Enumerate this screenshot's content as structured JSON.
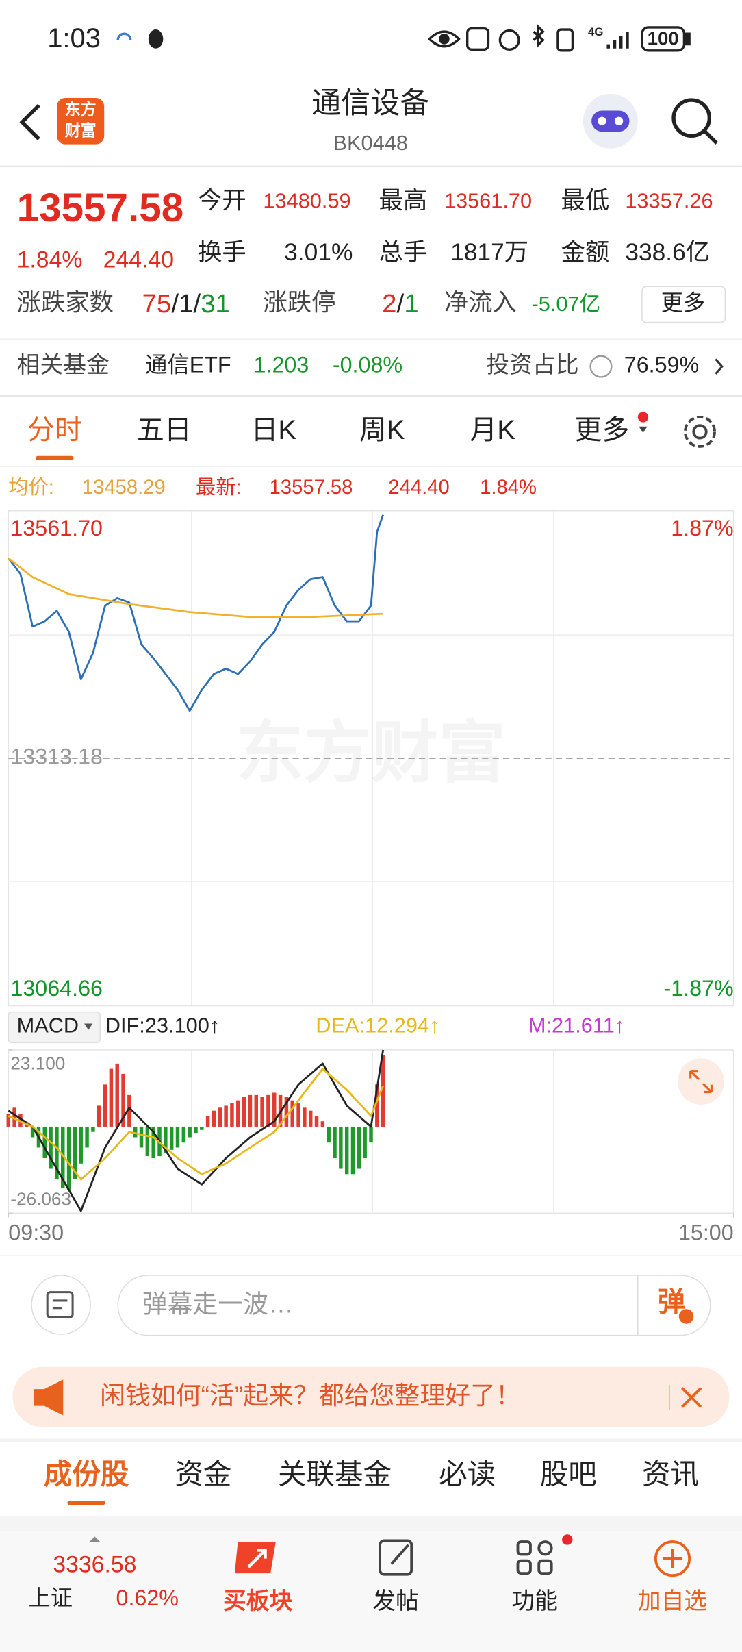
{
  "status": {
    "time": "1:03",
    "network": "4G",
    "battery": "100"
  },
  "header": {
    "logo": [
      "东方",
      "财富"
    ],
    "title": "通信设备",
    "code": "BK0448"
  },
  "quote": {
    "price": "13557.58",
    "change_pct": "1.84%",
    "change": "244.40",
    "fields": [
      {
        "label": "今开",
        "value": "13480.59"
      },
      {
        "label": "最高",
        "value": "13561.70"
      },
      {
        "label": "最低",
        "value": "13357.26"
      },
      {
        "label": "换手",
        "value": "3.01%"
      },
      {
        "label": "总手",
        "value": "1817万"
      },
      {
        "label": "金额",
        "value": "338.6亿"
      }
    ],
    "breadth": {
      "label": "涨跌家数",
      "up": "75",
      "flat": "1",
      "down": "31",
      "sep": "/"
    },
    "limits": {
      "label": "涨跌停",
      "up": "2",
      "down": "1",
      "sep": "/"
    },
    "net_inflow": {
      "label": "净流入",
      "value": "-5.07亿"
    },
    "more": "更多"
  },
  "fund": {
    "label": "相关基金",
    "name": "通信ETF",
    "price": "1.203",
    "change": "-0.08%",
    "ratio_label": "投资占比",
    "ratio": "76.59%"
  },
  "tabs": [
    "分时",
    "五日",
    "日K",
    "周K",
    "月K",
    "更多"
  ],
  "summary": {
    "avg_label": "均价:",
    "avg": "13458.29",
    "last_label": "最新:",
    "last": "13557.58",
    "change": "244.40",
    "pct": "1.84%"
  },
  "chart_data": [
    {
      "type": "line",
      "watermark": "东方财富",
      "xlim": [
        0,
        240
      ],
      "ylim": [
        13064.66,
        13561.7
      ],
      "yticks": [
        {
          "value": 13561.7,
          "label": "13561.70"
        },
        13313.18,
        13064.66
      ],
      "y2lim": [
        -1.87,
        1.87
      ],
      "y2ticks": [
        {
          "value": 1.87,
          "label": "1.87%"
        },
        {
          "value": -1.87,
          "label": "-1.87%"
        }
      ],
      "series": [
        {
          "color": "#2c6fb7",
          "x": [
            0,
            4,
            8,
            12,
            16,
            20,
            24,
            28,
            32,
            36,
            40,
            44,
            48,
            52,
            56,
            60,
            64,
            68,
            72,
            76,
            80,
            84,
            88,
            92,
            96,
            100,
            104,
            108,
            112,
            116,
            120,
            122,
            124
          ],
          "values": [
            13514.1,
            13498.2,
            13445.4,
            13450.7,
            13461.2,
            13440.1,
            13392.5,
            13418.9,
            13466.5,
            13473.9,
            13469.7,
            13427.4,
            13413.6,
            13397.8,
            13381.9,
            13360.8,
            13381.9,
            13397.8,
            13403.1,
            13397.8,
            13410.5,
            13427.4,
            13440.1,
            13466.5,
            13482.4,
            13493.0,
            13495.1,
            13466.5,
            13450.7,
            13450.7,
            13466.5,
            13540.5,
            13557.58
          ]
        },
        {
          "color": "#f0b22a",
          "x": [
            0,
            8,
            20,
            40,
            60,
            80,
            100,
            124
          ],
          "values": [
            13514.1,
            13495,
            13478,
            13468,
            13460,
            13455,
            13455,
            13458.29
          ]
        }
      ]
    },
    {
      "type": "macd",
      "indicator": "MACD",
      "xlim": [
        0,
        240
      ],
      "xticks": [
        {
          "value": 0,
          "label": "09:30"
        },
        {
          "value": 240,
          "label": "15:00"
        }
      ],
      "ylim": [
        -26.063,
        23.1
      ],
      "yticks": [
        {
          "value": 23.1,
          "label": "23.100"
        },
        -26.063
      ],
      "series": [
        {
          "name": "DIF:23.100↑",
          "color": "#222222",
          "type": "line",
          "x": [
            0,
            8,
            16,
            24,
            32,
            40,
            48,
            56,
            64,
            72,
            80,
            88,
            96,
            104,
            112,
            120,
            124
          ],
          "values": [
            4.8,
            0,
            -12.7,
            -25.4,
            -6.3,
            5.7,
            -1.6,
            -12.7,
            -17.4,
            -9.5,
            -3.2,
            1.6,
            12.7,
            19.0,
            6.3,
            0,
            23.1
          ]
        },
        {
          "name": "DEA:12.294↑",
          "color": "#e8b71a",
          "type": "line",
          "x": [
            0,
            8,
            16,
            24,
            32,
            40,
            48,
            56,
            64,
            72,
            80,
            88,
            96,
            104,
            112,
            120,
            124
          ],
          "values": [
            3.2,
            0,
            -6.3,
            -15.9,
            -9.5,
            -1.6,
            -3.2,
            -9.5,
            -14.3,
            -11.1,
            -6.3,
            -1.6,
            7.9,
            17.4,
            11.1,
            3.2,
            12.294
          ]
        },
        {
          "name": "M:21.611↑",
          "color": "#c43bd0",
          "type": "bar",
          "up_color": "#e33a32",
          "down_color": "#1f9a2a",
          "x": [
            0,
            2,
            4,
            6,
            8,
            10,
            12,
            14,
            16,
            18,
            20,
            22,
            24,
            26,
            28,
            30,
            32,
            34,
            36,
            38,
            40,
            42,
            44,
            46,
            48,
            50,
            52,
            54,
            56,
            58,
            60,
            62,
            64,
            66,
            68,
            70,
            72,
            74,
            76,
            78,
            80,
            82,
            84,
            86,
            88,
            90,
            92,
            94,
            96,
            98,
            100,
            102,
            104,
            106,
            108,
            110,
            112,
            114,
            116,
            118,
            120,
            122,
            124
          ],
          "values": [
            3.8,
            5.7,
            3.8,
            1.3,
            -3.2,
            -6.3,
            -9.5,
            -12.7,
            -15.9,
            -18.4,
            -19.0,
            -15.9,
            -11.1,
            -6.3,
            -1.6,
            6.3,
            12.7,
            17.4,
            19.0,
            15.9,
            9.5,
            -3.2,
            -6.3,
            -8.9,
            -9.5,
            -8.9,
            -7.9,
            -7.0,
            -6.3,
            -4.8,
            -3.2,
            -1.9,
            -1.0,
            3.2,
            4.8,
            5.7,
            6.3,
            7.0,
            7.9,
            8.9,
            9.5,
            9.5,
            8.9,
            9.5,
            10.2,
            9.5,
            8.9,
            7.9,
            7.0,
            5.7,
            4.8,
            3.2,
            1.6,
            -4.8,
            -9.5,
            -12.7,
            -14.3,
            -14.3,
            -12.7,
            -9.5,
            -4.8,
            12.7,
            21.611
          ]
        }
      ]
    }
  ],
  "comment": {
    "placeholder": "弹幕走一波…",
    "button": "弹"
  },
  "banner": {
    "text": "闲钱如何“活”起来？都给您整理好了！"
  },
  "sections": [
    "成份股",
    "资金",
    "关联基金",
    "必读",
    "股吧",
    "资讯"
  ],
  "bottom": {
    "index_value": "3336.58",
    "index_name": "上证",
    "index_pct": "0.62%",
    "items": [
      "买板块",
      "发帖",
      "功能",
      "加自选"
    ]
  }
}
